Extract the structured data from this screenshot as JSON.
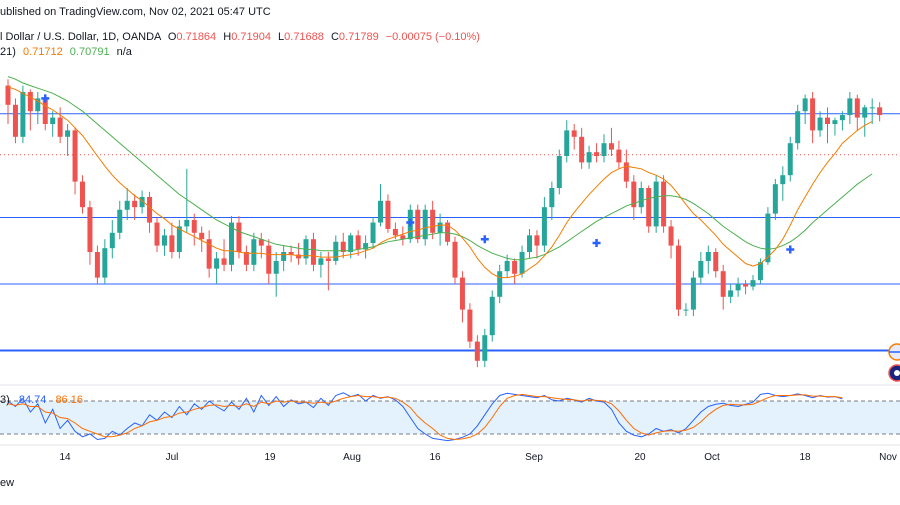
{
  "header": {
    "published": "ublished on TradingView.com, Nov 02, 2021 05:47 UTC",
    "symbol": "l Dollar / U.S. Dollar, 1D, OANDA",
    "o_label": "O",
    "o_value": "0.71864",
    "h_label": "H",
    "h_value": "0.71904",
    "l_label": "L",
    "l_value": "0.71688",
    "c_label": "C",
    "c_value": "0.71789",
    "change": "−0.00075 (−0.10%)",
    "ma_prefix": "21)",
    "ma1_value": "0.71712",
    "ma2_value": "0.70791",
    "ma_na": "n/a"
  },
  "stoch": {
    "prefix": "3)",
    "k_value": "84.74",
    "d_value": "86.16",
    "brand": "ew"
  },
  "colors": {
    "up": "#26a69a",
    "down": "#ef5350",
    "ma_fast": "#f57c00",
    "ma_slow": "#4caf50",
    "level_line": "#2962ff",
    "stoch_k": "#2962ff",
    "stoch_d": "#ff6d00",
    "signal": "#2962ff"
  },
  "chart_data": {
    "type": "candlestick",
    "y_range": [
      0.6985,
      0.7235
    ],
    "x_ticks": [
      "14",
      "Jul",
      "19",
      "Aug",
      "16",
      "Sep",
      "20",
      "Oct",
      "18",
      "Nov"
    ],
    "candles": [
      [
        0.7215,
        0.722,
        0.7185,
        0.72
      ],
      [
        0.72,
        0.7205,
        0.717,
        0.7175
      ],
      [
        0.7175,
        0.7215,
        0.717,
        0.721
      ],
      [
        0.721,
        0.7212,
        0.718,
        0.7195
      ],
      [
        0.7195,
        0.721,
        0.7185,
        0.7205
      ],
      [
        0.7205,
        0.7208,
        0.718,
        0.7185
      ],
      [
        0.7185,
        0.7195,
        0.7175,
        0.719
      ],
      [
        0.719,
        0.7198,
        0.717,
        0.7175
      ],
      [
        0.7175,
        0.7185,
        0.716,
        0.718
      ],
      [
        0.718,
        0.7182,
        0.713,
        0.714
      ],
      [
        0.714,
        0.7145,
        0.7115,
        0.712
      ],
      [
        0.712,
        0.7125,
        0.7075,
        0.7085
      ],
      [
        0.7085,
        0.709,
        0.706,
        0.7065
      ],
      [
        0.7065,
        0.7095,
        0.706,
        0.7088
      ],
      [
        0.7088,
        0.711,
        0.708,
        0.71
      ],
      [
        0.71,
        0.7125,
        0.7095,
        0.7118
      ],
      [
        0.7118,
        0.7135,
        0.711,
        0.7125
      ],
      [
        0.7125,
        0.713,
        0.711,
        0.712
      ],
      [
        0.712,
        0.7133,
        0.7115,
        0.7128
      ],
      [
        0.7128,
        0.7132,
        0.71,
        0.7108
      ],
      [
        0.7108,
        0.7112,
        0.7085,
        0.709
      ],
      [
        0.709,
        0.7103,
        0.7082,
        0.7098
      ],
      [
        0.7098,
        0.7108,
        0.708,
        0.7085
      ],
      [
        0.7085,
        0.711,
        0.708,
        0.7105
      ],
      [
        0.7105,
        0.715,
        0.71,
        0.711
      ],
      [
        0.711,
        0.7115,
        0.709,
        0.71
      ],
      [
        0.71,
        0.7105,
        0.7085,
        0.7095
      ],
      [
        0.7095,
        0.7102,
        0.7065,
        0.7072
      ],
      [
        0.7072,
        0.7085,
        0.706,
        0.708
      ],
      [
        0.708,
        0.7095,
        0.707,
        0.7075
      ],
      [
        0.7075,
        0.7113,
        0.707,
        0.7108
      ],
      [
        0.7108,
        0.7113,
        0.708,
        0.7085
      ],
      [
        0.7085,
        0.709,
        0.707,
        0.7075
      ],
      [
        0.7075,
        0.71,
        0.707,
        0.7095
      ],
      [
        0.7095,
        0.71,
        0.708,
        0.709
      ],
      [
        0.709,
        0.7095,
        0.706,
        0.7068
      ],
      [
        0.7068,
        0.7085,
        0.705,
        0.7078
      ],
      [
        0.7078,
        0.709,
        0.707,
        0.7085
      ],
      [
        0.7085,
        0.709,
        0.7077,
        0.7083
      ],
      [
        0.7083,
        0.7092,
        0.7075,
        0.708
      ],
      [
        0.708,
        0.7098,
        0.7075,
        0.7095
      ],
      [
        0.7095,
        0.71,
        0.707,
        0.7075
      ],
      [
        0.7075,
        0.7085,
        0.7065,
        0.708
      ],
      [
        0.708,
        0.7085,
        0.7055,
        0.7078
      ],
      [
        0.7078,
        0.7098,
        0.7075,
        0.7093
      ],
      [
        0.7093,
        0.71,
        0.708,
        0.7085
      ],
      [
        0.7085,
        0.71,
        0.708,
        0.7098
      ],
      [
        0.7098,
        0.7102,
        0.7082,
        0.7087
      ],
      [
        0.7087,
        0.7098,
        0.708,
        0.7092
      ],
      [
        0.7092,
        0.7112,
        0.7088,
        0.7108
      ],
      [
        0.7108,
        0.7138,
        0.7105,
        0.7125
      ],
      [
        0.7125,
        0.713,
        0.71,
        0.7103
      ],
      [
        0.7103,
        0.7108,
        0.7095,
        0.7098
      ],
      [
        0.7098,
        0.7105,
        0.709,
        0.7095
      ],
      [
        0.7095,
        0.7122,
        0.7092,
        0.7118
      ],
      [
        0.7118,
        0.7122,
        0.7092,
        0.7095
      ],
      [
        0.7095,
        0.7122,
        0.709,
        0.7118
      ],
      [
        0.7118,
        0.7125,
        0.7095,
        0.71
      ],
      [
        0.71,
        0.7115,
        0.709,
        0.7108
      ],
      [
        0.7108,
        0.711,
        0.709,
        0.7093
      ],
      [
        0.7093,
        0.7097,
        0.706,
        0.7065
      ],
      [
        0.7065,
        0.707,
        0.703,
        0.704
      ],
      [
        0.704,
        0.7045,
        0.701,
        0.7015
      ],
      [
        0.7015,
        0.702,
        0.6995,
        0.7
      ],
      [
        0.7,
        0.7025,
        0.6995,
        0.702
      ],
      [
        0.702,
        0.7055,
        0.7015,
        0.705
      ],
      [
        0.705,
        0.7075,
        0.7045,
        0.707
      ],
      [
        0.707,
        0.7083,
        0.7065,
        0.7078
      ],
      [
        0.7078,
        0.708,
        0.706,
        0.7068
      ],
      [
        0.7068,
        0.709,
        0.7065,
        0.7085
      ],
      [
        0.7085,
        0.7103,
        0.708,
        0.7098
      ],
      [
        0.7098,
        0.7102,
        0.708,
        0.709
      ],
      [
        0.709,
        0.7128,
        0.7085,
        0.712
      ],
      [
        0.712,
        0.714,
        0.711,
        0.7135
      ],
      [
        0.7135,
        0.7165,
        0.713,
        0.716
      ],
      [
        0.716,
        0.7188,
        0.7155,
        0.718
      ],
      [
        0.718,
        0.7185,
        0.7165,
        0.7175
      ],
      [
        0.7175,
        0.7182,
        0.715,
        0.7155
      ],
      [
        0.7155,
        0.7168,
        0.715,
        0.7163
      ],
      [
        0.7163,
        0.717,
        0.7155,
        0.716
      ],
      [
        0.716,
        0.7177,
        0.7155,
        0.717
      ],
      [
        0.717,
        0.7182,
        0.716,
        0.7165
      ],
      [
        0.7165,
        0.7172,
        0.715,
        0.7155
      ],
      [
        0.7155,
        0.7165,
        0.7135,
        0.714
      ],
      [
        0.714,
        0.7145,
        0.711,
        0.712
      ],
      [
        0.712,
        0.714,
        0.7115,
        0.7135
      ],
      [
        0.7135,
        0.7137,
        0.71,
        0.7105
      ],
      [
        0.7105,
        0.7145,
        0.71,
        0.714
      ],
      [
        0.714,
        0.7145,
        0.71,
        0.7105
      ],
      [
        0.7105,
        0.711,
        0.708,
        0.709
      ],
      [
        0.709,
        0.7095,
        0.7035,
        0.704
      ],
      [
        0.704,
        0.7045,
        0.7035,
        0.704
      ],
      [
        0.704,
        0.707,
        0.7035,
        0.7065
      ],
      [
        0.7065,
        0.7085,
        0.706,
        0.7078
      ],
      [
        0.7078,
        0.709,
        0.7068,
        0.7085
      ],
      [
        0.7085,
        0.7088,
        0.7065,
        0.707
      ],
      [
        0.707,
        0.7075,
        0.704,
        0.705
      ],
      [
        0.705,
        0.706,
        0.7045,
        0.7055
      ],
      [
        0.7055,
        0.7065,
        0.705,
        0.706
      ],
      [
        0.706,
        0.7063,
        0.7052,
        0.7058
      ],
      [
        0.7058,
        0.7067,
        0.7055,
        0.7063
      ],
      [
        0.7063,
        0.708,
        0.706,
        0.7077
      ],
      [
        0.7077,
        0.712,
        0.7075,
        0.7115
      ],
      [
        0.7115,
        0.7142,
        0.711,
        0.7138
      ],
      [
        0.7138,
        0.7152,
        0.7125,
        0.7145
      ],
      [
        0.7145,
        0.7175,
        0.714,
        0.717
      ],
      [
        0.717,
        0.72,
        0.7165,
        0.7195
      ],
      [
        0.7195,
        0.7208,
        0.7185,
        0.7205
      ],
      [
        0.7205,
        0.721,
        0.717,
        0.718
      ],
      [
        0.718,
        0.7195,
        0.7175,
        0.719
      ],
      [
        0.719,
        0.7198,
        0.717,
        0.7185
      ],
      [
        0.7185,
        0.719,
        0.7176,
        0.7188
      ],
      [
        0.7188,
        0.7195,
        0.718,
        0.7192
      ],
      [
        0.7192,
        0.721,
        0.7185,
        0.7205
      ],
      [
        0.7205,
        0.7208,
        0.718,
        0.719
      ],
      [
        0.719,
        0.72,
        0.7175,
        0.7198
      ],
      [
        0.7198,
        0.7205,
        0.7185,
        0.7198
      ],
      [
        0.7198,
        0.7202,
        0.7187,
        0.7192
      ]
    ],
    "ma_fast": [
      0.7214,
      0.7212,
      0.7209,
      0.7206,
      0.7203,
      0.7199,
      0.7196,
      0.7192,
      0.7188,
      0.7182,
      0.7176,
      0.7168,
      0.716,
      0.7152,
      0.7145,
      0.7139,
      0.7134,
      0.7129,
      0.7125,
      0.712,
      0.7115,
      0.7111,
      0.7106,
      0.7103,
      0.71,
      0.7097,
      0.7094,
      0.7091,
      0.7088,
      0.7086,
      0.7086,
      0.7085,
      0.7084,
      0.7084,
      0.7084,
      0.7083,
      0.7083,
      0.7083,
      0.7083,
      0.7082,
      0.7082,
      0.7082,
      0.7081,
      0.7081,
      0.7081,
      0.7082,
      0.7083,
      0.7084,
      0.7086,
      0.7088,
      0.7092,
      0.7095,
      0.7097,
      0.7099,
      0.7101,
      0.7102,
      0.7104,
      0.7105,
      0.7106,
      0.7106,
      0.7102,
      0.7096,
      0.7089,
      0.708,
      0.7073,
      0.7068,
      0.7065,
      0.7065,
      0.7066,
      0.7068,
      0.7072,
      0.7076,
      0.7082,
      0.7089,
      0.7098,
      0.7108,
      0.7116,
      0.7123,
      0.713,
      0.7136,
      0.7142,
      0.7147,
      0.715,
      0.7152,
      0.7151,
      0.715,
      0.7147,
      0.7145,
      0.7142,
      0.7137,
      0.713,
      0.7122,
      0.7115,
      0.711,
      0.7104,
      0.7098,
      0.7091,
      0.7086,
      0.7081,
      0.7076,
      0.7074,
      0.7076,
      0.7081,
      0.7087,
      0.7095,
      0.7106,
      0.7118,
      0.7128,
      0.7138,
      0.7147,
      0.7155,
      0.7162,
      0.717,
      0.7175,
      0.718,
      0.7184,
      0.7187
    ],
    "ma_slow": [
      0.7222,
      0.722,
      0.7217,
      0.7215,
      0.7213,
      0.7211,
      0.7209,
      0.7206,
      0.7203,
      0.7199,
      0.7195,
      0.719,
      0.7185,
      0.718,
      0.7175,
      0.717,
      0.7165,
      0.716,
      0.7155,
      0.715,
      0.7145,
      0.714,
      0.7135,
      0.713,
      0.7126,
      0.7122,
      0.7118,
      0.7114,
      0.711,
      0.7107,
      0.7104,
      0.7101,
      0.7099,
      0.7097,
      0.7095,
      0.7093,
      0.7091,
      0.709,
      0.7089,
      0.7088,
      0.7087,
      0.7087,
      0.7086,
      0.7086,
      0.7086,
      0.7086,
      0.7086,
      0.7087,
      0.7088,
      0.7089,
      0.7091,
      0.7093,
      0.7094,
      0.7095,
      0.7096,
      0.7097,
      0.7098,
      0.7099,
      0.71,
      0.71,
      0.7099,
      0.7097,
      0.7094,
      0.709,
      0.7087,
      0.7084,
      0.7082,
      0.708,
      0.7079,
      0.7079,
      0.708,
      0.7081,
      0.7083,
      0.7086,
      0.7089,
      0.7093,
      0.7097,
      0.7101,
      0.7105,
      0.7109,
      0.7112,
      0.7115,
      0.7118,
      0.7121,
      0.7123,
      0.7125,
      0.7127,
      0.7128,
      0.7129,
      0.7129,
      0.7128,
      0.7126,
      0.7123,
      0.7119,
      0.7115,
      0.711,
      0.7105,
      0.7101,
      0.7097,
      0.7093,
      0.709,
      0.7088,
      0.7087,
      0.7088,
      0.709,
      0.7093,
      0.7097,
      0.7102,
      0.7108,
      0.7113,
      0.7118,
      0.7123,
      0.7128,
      0.7133,
      0.7138,
      0.7142,
      0.7146
    ],
    "levels": [
      0.7193,
      0.7161,
      0.7112,
      0.706,
      0.7008
    ],
    "signal_markers": [
      [
        5,
        0.7205
      ],
      [
        54,
        0.7108
      ],
      [
        64,
        0.7095
      ],
      [
        79,
        0.7092
      ],
      [
        105,
        0.7087
      ]
    ],
    "stoch_range": [
      0,
      100
    ],
    "stoch_bands": [
      80,
      20
    ],
    "stoch_k": [
      80,
      70,
      85,
      60,
      75,
      40,
      65,
      30,
      45,
      25,
      15,
      20,
      10,
      12,
      25,
      18,
      30,
      40,
      35,
      55,
      45,
      60,
      50,
      70,
      55,
      75,
      65,
      80,
      70,
      62,
      78,
      65,
      85,
      60,
      90,
      72,
      88,
      70,
      82,
      75,
      78,
      68,
      85,
      72,
      90,
      95,
      88,
      92,
      80,
      90,
      85,
      88,
      82,
      70,
      50,
      30,
      20,
      12,
      10,
      8,
      10,
      14,
      20,
      35,
      55,
      75,
      90,
      94,
      92,
      90,
      88,
      86,
      90,
      82,
      80,
      85,
      82,
      78,
      85,
      80,
      78,
      65,
      40,
      25,
      18,
      15,
      20,
      30,
      25,
      28,
      22,
      30,
      45,
      60,
      70,
      74,
      76,
      72,
      70,
      74,
      78,
      92,
      94,
      90,
      88,
      90,
      93,
      90,
      86,
      90,
      87,
      88,
      84
    ],
    "stoch_d": [
      75,
      72,
      75,
      70,
      70,
      60,
      58,
      50,
      48,
      40,
      30,
      25,
      20,
      15,
      15,
      18,
      22,
      30,
      35,
      42,
      45,
      50,
      52,
      58,
      60,
      65,
      68,
      72,
      73,
      70,
      72,
      70,
      75,
      70,
      78,
      75,
      80,
      78,
      80,
      78,
      78,
      76,
      78,
      76,
      80,
      85,
      88,
      90,
      88,
      88,
      86,
      87,
      85,
      78,
      68,
      52,
      40,
      30,
      18,
      12,
      10,
      11,
      14,
      20,
      32,
      50,
      70,
      85,
      90,
      92,
      90,
      88,
      88,
      86,
      84,
      83,
      82,
      80,
      82,
      81,
      80,
      75,
      62,
      45,
      30,
      22,
      18,
      22,
      25,
      26,
      25,
      27,
      32,
      42,
      55,
      65,
      72,
      74,
      73,
      73,
      74,
      80,
      86,
      90,
      90,
      90,
      91,
      91,
      89,
      89,
      88,
      88,
      86
    ]
  }
}
